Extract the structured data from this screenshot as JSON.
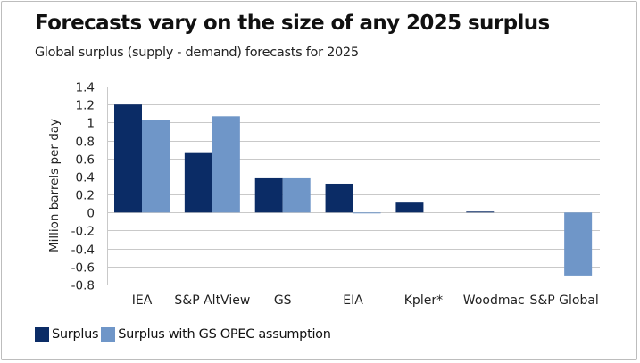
{
  "title": "Forecasts vary on the size of any 2025 surplus",
  "subtitle": "Global surplus (supply - demand) forecasts for 2025",
  "chart_data": {
    "type": "bar",
    "title": "Forecasts vary on the size of any 2025 surplus",
    "subtitle": "Global surplus (supply - demand) forecasts for 2025",
    "xlabel": "",
    "ylabel": "Million barrels per day",
    "ylim": [
      -0.8,
      1.4
    ],
    "yticks": [
      "1.4",
      "1.2",
      "1",
      "0.8",
      "0.6",
      "0.4",
      "0.2",
      "0",
      "-0.2",
      "-0.4",
      "-0.6",
      "-0.8"
    ],
    "ytick_values": [
      1.4,
      1.2,
      1.0,
      0.8,
      0.6,
      0.4,
      0.2,
      0,
      -0.2,
      -0.4,
      -0.6,
      -0.8
    ],
    "grid": true,
    "legend_position": "bottom-left",
    "categories": [
      "IEA",
      "S&P AltView",
      "GS",
      "EIA",
      "Kpler*",
      "Woodmac",
      "S&P Global"
    ],
    "series": [
      {
        "name": "Surplus",
        "color": "#0b2c66",
        "values": [
          1.2,
          0.67,
          0.38,
          0.32,
          0.11,
          0.01,
          null
        ]
      },
      {
        "name": "Surplus with GS OPEC assumption",
        "color": "#6f96c8",
        "values": [
          1.03,
          1.07,
          0.38,
          -0.01,
          null,
          null,
          -0.7
        ]
      }
    ]
  }
}
